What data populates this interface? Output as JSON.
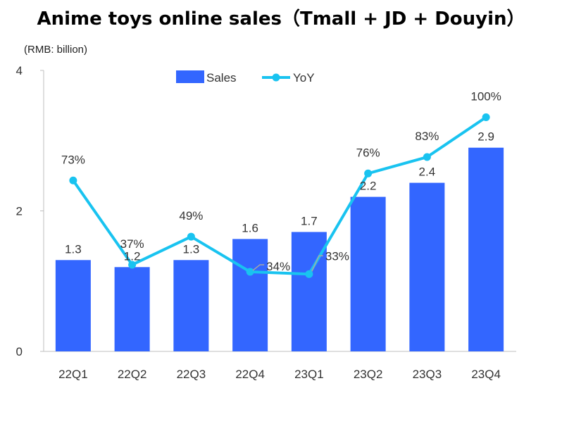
{
  "chart_data": {
    "type": "bar",
    "title": "Anime toys online sales（Tmall + JD + Douyin）",
    "unit": "(RMB: billion)",
    "categories": [
      "22Q1",
      "22Q2",
      "22Q3",
      "22Q4",
      "23Q1",
      "23Q2",
      "23Q3",
      "23Q4"
    ],
    "series": [
      {
        "name": "Sales",
        "type": "bar",
        "axis": "left",
        "color": "#3366ff",
        "values": [
          1.3,
          1.2,
          1.3,
          1.6,
          1.7,
          2.2,
          2.4,
          2.9
        ],
        "labels": [
          "1.3",
          "1.2",
          "1.3",
          "1.6",
          "1.7",
          "2.2",
          "2.4",
          "2.9"
        ]
      },
      {
        "name": "YoY",
        "type": "line",
        "axis": "secondary",
        "color": "#19c3f0",
        "values": [
          73,
          37,
          49,
          34,
          33,
          76,
          83,
          100
        ],
        "labels": [
          "73%",
          "37%",
          "49%",
          "34%",
          "33%",
          "76%",
          "83%",
          "100%"
        ]
      }
    ],
    "y_ticks": [
      "0",
      "2",
      "4"
    ],
    "ylim": [
      0,
      4
    ],
    "legend_position": "top-center",
    "grid": false
  }
}
